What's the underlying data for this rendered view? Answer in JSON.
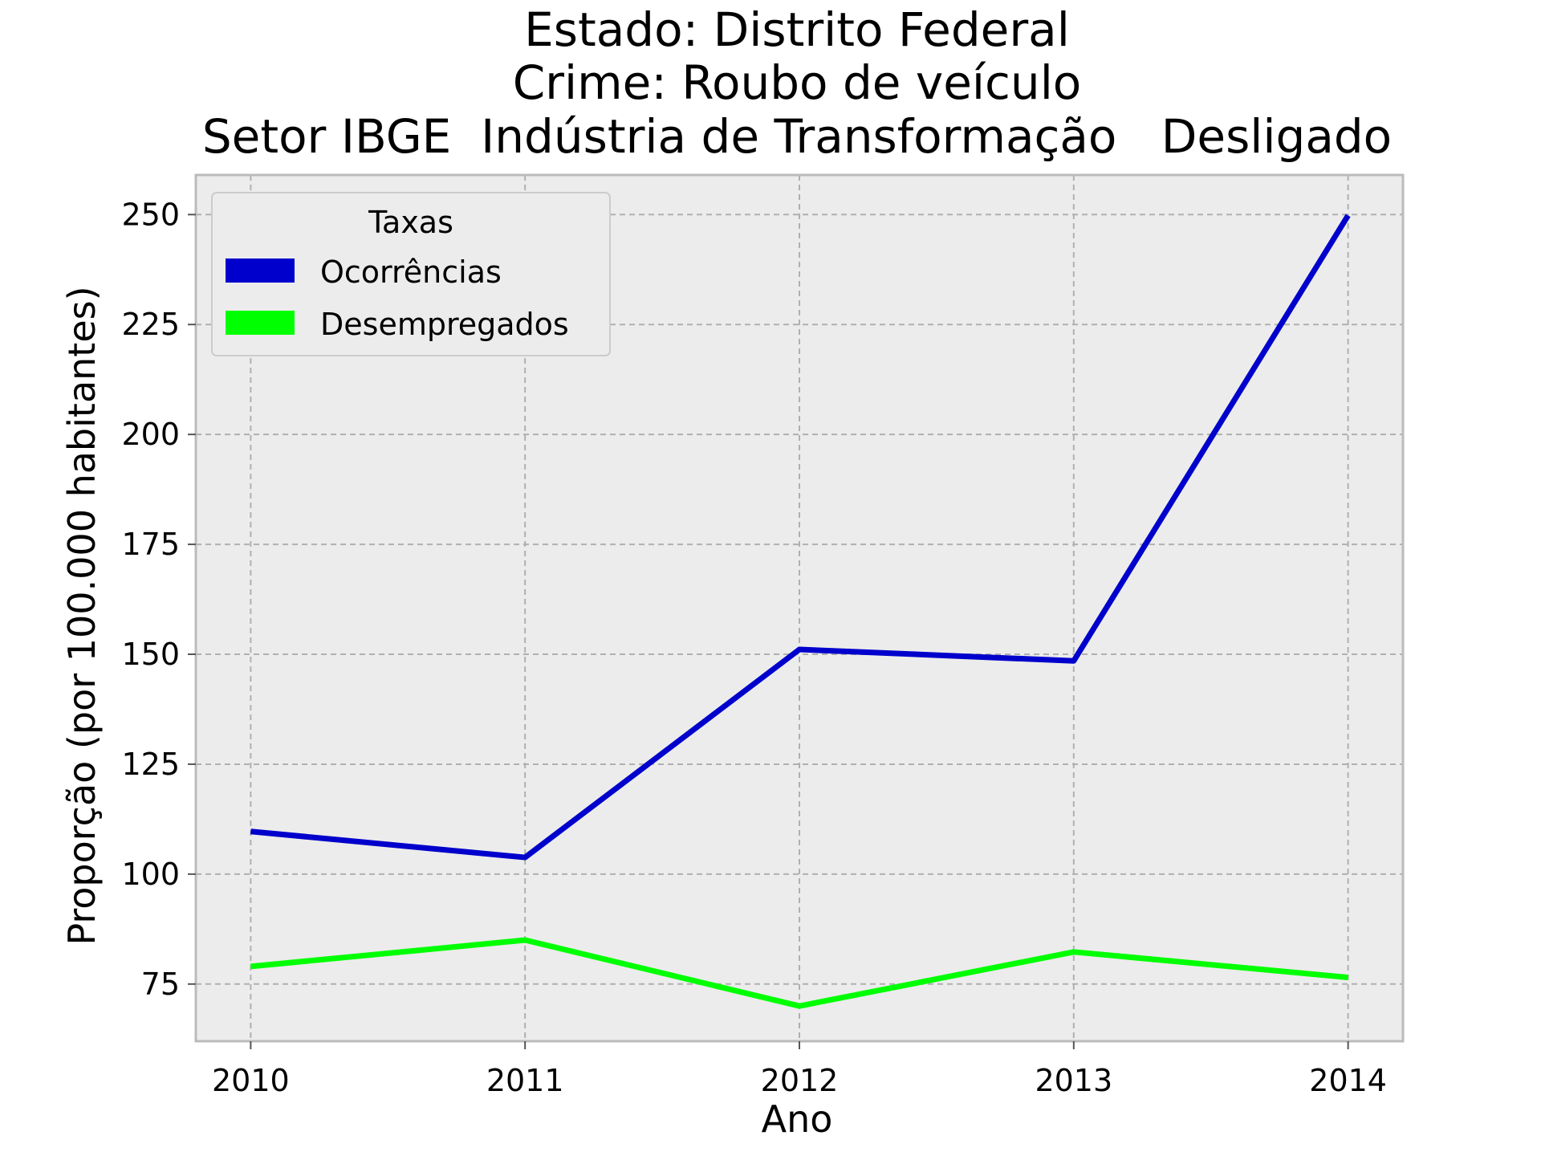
{
  "chart_data": {
    "type": "line",
    "title": [
      "Estado: Distrito Federal",
      "Crime: Roubo de veículo",
      "Setor IBGE  Indústria de Transformação   Desligado"
    ],
    "xlabel": "Ano",
    "ylabel": "Proporção (por 100.000 habitantes)",
    "x": [
      2010,
      2011,
      2012,
      2013,
      2014
    ],
    "x_tick_labels": [
      "2010",
      "2011",
      "2012",
      "2013",
      "2014"
    ],
    "y_ticks": [
      75,
      100,
      125,
      150,
      175,
      200,
      225,
      250
    ],
    "y_tick_labels": [
      "75",
      "100",
      "125",
      "150",
      "175",
      "200",
      "225",
      "250"
    ],
    "xlim": [
      2009.8,
      2014.2
    ],
    "ylim": [
      62,
      259
    ],
    "grid": true,
    "legend": {
      "title": "Taxas",
      "placement": "upper-left"
    },
    "series": [
      {
        "name": "Ocorrências",
        "color": "#0000cc",
        "values": [
          109.7,
          103.8,
          151.1,
          148.5,
          249.8
        ]
      },
      {
        "name": "Desempregados",
        "color": "#00ff00",
        "values": [
          79.0,
          85.0,
          70.0,
          82.3,
          76.5
        ]
      }
    ]
  }
}
